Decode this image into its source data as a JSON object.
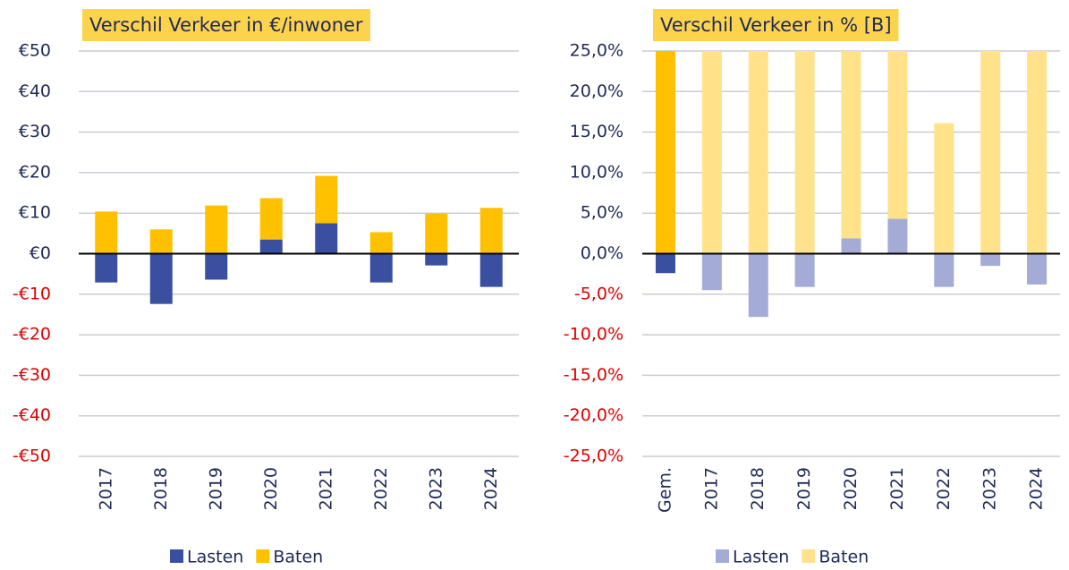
{
  "chart_data": [
    {
      "type": "stacked-bar",
      "title": "Verschil Verkeer in €/inwoner",
      "categories": [
        "2017",
        "2018",
        "2019",
        "2020",
        "2021",
        "2022",
        "2023",
        "2024"
      ],
      "series": [
        {
          "name": "Lasten",
          "color": "#3a4fa0",
          "values": [
            -7.1,
            -12.4,
            -6.4,
            3.5,
            7.5,
            -7.1,
            -2.9,
            -8.2
          ]
        },
        {
          "name": "Baten",
          "color": "#ffc000",
          "values": [
            10.4,
            6.0,
            11.9,
            10.2,
            11.7,
            5.3,
            9.9,
            11.3
          ]
        }
      ],
      "ylim": [
        -50,
        50
      ],
      "yticks": [
        {
          "value": 50,
          "label": "€50"
        },
        {
          "value": 40,
          "label": "€40"
        },
        {
          "value": 30,
          "label": "€30"
        },
        {
          "value": 20,
          "label": "€20"
        },
        {
          "value": 10,
          "label": "€10"
        },
        {
          "value": 0,
          "label": "€0"
        },
        {
          "value": -10,
          "label": "-€10"
        },
        {
          "value": -20,
          "label": "-€20"
        },
        {
          "value": -30,
          "label": "-€30"
        },
        {
          "value": -40,
          "label": "-€40"
        },
        {
          "value": -50,
          "label": "-€50"
        }
      ],
      "negative_label_color": "#e00000",
      "grid": true
    },
    {
      "type": "stacked-bar",
      "title": "Verschil Verkeer in % [B]",
      "categories": [
        "Gem.",
        "2017",
        "2018",
        "2019",
        "2020",
        "2021",
        "2022",
        "2023",
        "2024"
      ],
      "series": [
        {
          "name": "Lasten",
          "color": "#a3abd6",
          "colors": [
            "#3a4fa0",
            "#a3abd6",
            "#a3abd6",
            "#a3abd6",
            "#a3abd6",
            "#a3abd6",
            "#a3abd6",
            "#a3abd6",
            "#a3abd6"
          ],
          "values": [
            -2.4,
            -4.5,
            -7.8,
            -4.1,
            1.9,
            4.3,
            -4.1,
            -1.5,
            -3.8
          ]
        },
        {
          "name": "Baten",
          "color": "#ffe28a",
          "colors": [
            "#ffc000",
            "#ffe28a",
            "#ffe28a",
            "#ffe28a",
            "#ffe28a",
            "#ffe28a",
            "#ffe28a",
            "#ffe28a",
            "#ffe28a"
          ],
          "values": [
            25,
            25,
            25,
            25,
            23.1,
            20.7,
            16.1,
            25,
            25
          ]
        }
      ],
      "ylim": [
        -25,
        25
      ],
      "yticks": [
        {
          "value": 25,
          "label": "25,0%"
        },
        {
          "value": 20,
          "label": "20,0%"
        },
        {
          "value": 15,
          "label": "15,0%"
        },
        {
          "value": 10,
          "label": "10,0%"
        },
        {
          "value": 5,
          "label": "5,0%"
        },
        {
          "value": 0,
          "label": "0,0%"
        },
        {
          "value": -5,
          "label": "-5,0%"
        },
        {
          "value": -10,
          "label": "-10,0%"
        },
        {
          "value": -15,
          "label": "-15,0%"
        },
        {
          "value": -20,
          "label": "-20,0%"
        },
        {
          "value": -25,
          "label": "-25,0%"
        }
      ],
      "negative_label_color": "#e00000",
      "grid": true
    }
  ]
}
